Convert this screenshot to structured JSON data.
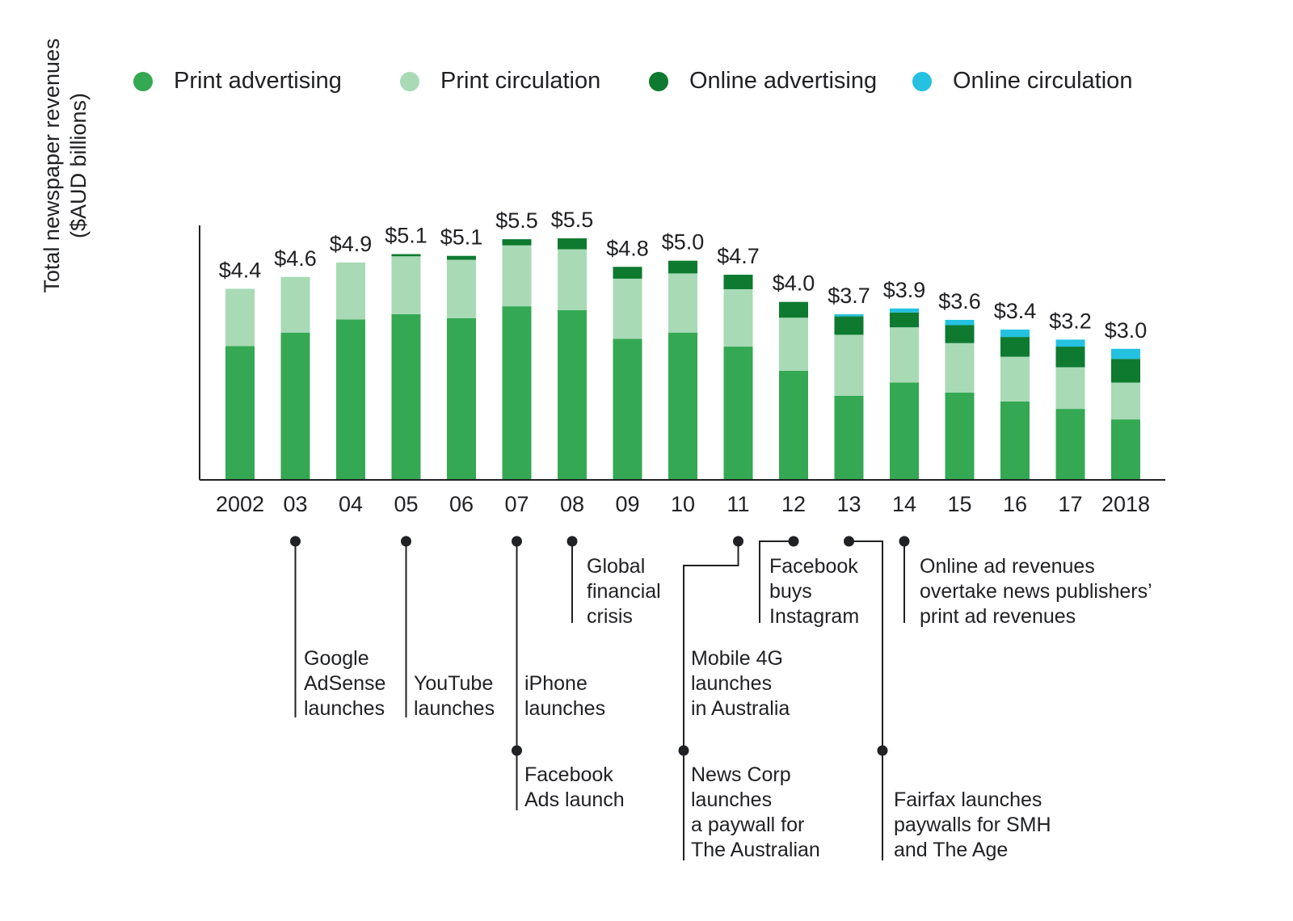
{
  "legend": [
    {
      "label": "Print advertising",
      "color": "#34a853"
    },
    {
      "label": "Print circulation",
      "color": "#a8dab5"
    },
    {
      "label": "Online advertising",
      "color": "#0d7a30"
    },
    {
      "label": "Online circulation",
      "color": "#24c1e0"
    }
  ],
  "chart_data": {
    "type": "bar",
    "stacked": true,
    "ylabel": "Total newspaper revenues ($AUD billions)",
    "ylabel_lines": [
      "Total newspaper revenues",
      "($AUD billions)"
    ],
    "categories": [
      "2002",
      "03",
      "04",
      "05",
      "06",
      "07",
      "08",
      "09",
      "10",
      "11",
      "12",
      "13",
      "14",
      "15",
      "16",
      "17",
      "2018"
    ],
    "totals_labels": [
      "$4.4",
      "$4.6",
      "$4.9",
      "$5.1",
      "$5.1",
      "$5.5",
      "$5.5",
      "$4.8",
      "$5.0",
      "$4.7",
      "$4.0",
      "$3.7",
      "$3.9",
      "$3.6",
      "$3.4",
      "$3.2",
      "$3.0"
    ],
    "ylim": [
      0,
      6.1
    ],
    "series": [
      {
        "name": "Print advertising",
        "color": "#34a853",
        "values": [
          3.05,
          3.36,
          3.66,
          3.78,
          3.69,
          3.96,
          3.87,
          3.22,
          3.36,
          3.04,
          2.49,
          1.92,
          2.22,
          1.99,
          1.79,
          1.62,
          1.38
        ]
      },
      {
        "name": "Print circulation",
        "color": "#a8dab5",
        "values": [
          1.31,
          1.27,
          1.3,
          1.32,
          1.33,
          1.39,
          1.39,
          1.37,
          1.35,
          1.31,
          1.21,
          1.39,
          1.26,
          1.13,
          1.02,
          0.95,
          0.84
        ]
      },
      {
        "name": "Online advertising",
        "color": "#0d7a30",
        "values": [
          0.0,
          0.0,
          0.0,
          0.05,
          0.09,
          0.14,
          0.25,
          0.27,
          0.29,
          0.33,
          0.36,
          0.42,
          0.34,
          0.41,
          0.45,
          0.47,
          0.54
        ]
      },
      {
        "name": "Online circulation",
        "color": "#24c1e0",
        "values": [
          0.0,
          0.0,
          0.0,
          0.0,
          0.0,
          0.0,
          0.0,
          0.0,
          0.0,
          0.0,
          0.0,
          0.05,
          0.09,
          0.12,
          0.17,
          0.16,
          0.23
        ]
      }
    ]
  },
  "events": [
    {
      "text": "Google\nAdSense\nlaunches",
      "year_index": 1
    },
    {
      "text": "YouTube\nlaunches",
      "year_index": 3
    },
    {
      "text": "iPhone\nlaunches",
      "year_index": 5
    },
    {
      "text": "Facebook\nAds launch",
      "year_index": 5
    },
    {
      "text": "Global\nfinancial\ncrisis",
      "year_index": 6
    },
    {
      "text": "Mobile 4G\nlaunches\nin Australia",
      "year_index": 9
    },
    {
      "text": "News Corp\nlaunches\na paywall for\nThe Australian",
      "year_index": 9
    },
    {
      "text": "Facebook\nbuys\nInstagram",
      "year_index": 10
    },
    {
      "text": "Fairfax launches\npaywalls for SMH\nand The Age",
      "year_index": 11
    },
    {
      "text": "Online ad revenues\novertake news publishers’\nprint ad revenues",
      "year_index": 12
    }
  ]
}
